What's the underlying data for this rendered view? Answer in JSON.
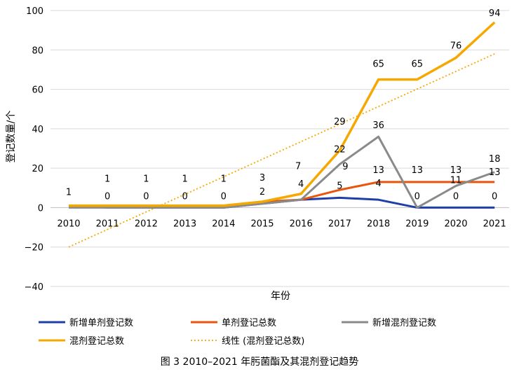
{
  "chart_data": {
    "type": "line",
    "title": "",
    "xlabel": "年份",
    "ylabel": "登记数量/个",
    "ylim": [
      -40,
      100
    ],
    "yticks": [
      100,
      80,
      60,
      40,
      20,
      0,
      -20,
      -40
    ],
    "ytick_labels": [
      "100",
      "80",
      "60",
      "40",
      "20",
      "0",
      "−20",
      "−40"
    ],
    "categories": [
      "2010",
      "2011",
      "2012",
      "2013",
      "2014",
      "2015",
      "2016",
      "2017",
      "2018",
      "2019",
      "2020",
      "2021"
    ],
    "grid": true,
    "legend_position": "bottom",
    "series": [
      {
        "name": "新增单剂登记数",
        "color": "#1f3fa8",
        "style": "solid",
        "values": [
          1,
          0,
          0,
          0,
          0,
          2,
          4,
          5,
          4,
          0,
          0,
          0
        ]
      },
      {
        "name": "单剂登记总数",
        "color": "#e8560e",
        "style": "solid",
        "values": [
          1,
          1,
          1,
          1,
          1,
          3,
          4,
          9,
          13,
          13,
          13,
          13
        ]
      },
      {
        "name": "新增混剂登记数",
        "color": "#8a8a8a",
        "style": "solid",
        "values": [
          0,
          0,
          0,
          0,
          0,
          2,
          4,
          22,
          36,
          0,
          11,
          18
        ]
      },
      {
        "name": "混剂登记总数",
        "color": "#f5a800",
        "style": "solid",
        "values": [
          1,
          1,
          1,
          1,
          1,
          3,
          7,
          29,
          65,
          65,
          76,
          94
        ]
      },
      {
        "name": "线性 (混剂登记总数)",
        "color": "#f5a800",
        "style": "dotted",
        "trend_endpoints": [
          -20,
          78
        ]
      }
    ],
    "data_labels": [
      {
        "category": "2010",
        "value": 1,
        "text": "1"
      },
      {
        "category": "2011",
        "value": 1,
        "text": "1"
      },
      {
        "category": "2011",
        "value": 0,
        "text": "0"
      },
      {
        "category": "2012",
        "value": 1,
        "text": "1"
      },
      {
        "category": "2012",
        "value": 0,
        "text": "0"
      },
      {
        "category": "2013",
        "value": 1,
        "text": "1"
      },
      {
        "category": "2013",
        "value": 0,
        "text": "0"
      },
      {
        "category": "2014",
        "value": 1,
        "text": "1"
      },
      {
        "category": "2014",
        "value": 0,
        "text": "0"
      },
      {
        "category": "2015",
        "value": 3,
        "text": "3"
      },
      {
        "category": "2015",
        "value": 2,
        "text": "2"
      },
      {
        "category": "2016",
        "value": 7,
        "text": "7"
      },
      {
        "category": "2016",
        "value": 4,
        "text": "4"
      },
      {
        "category": "2017",
        "value": 29,
        "text": "29"
      },
      {
        "category": "2017",
        "value": 22,
        "text": "22"
      },
      {
        "category": "2017",
        "value": 9,
        "text": "9"
      },
      {
        "category": "2017",
        "value": 5,
        "text": "5"
      },
      {
        "category": "2018",
        "value": 65,
        "text": "65"
      },
      {
        "category": "2018",
        "value": 36,
        "text": "36"
      },
      {
        "category": "2018",
        "value": 13,
        "text": "13"
      },
      {
        "category": "2018",
        "value": 4,
        "text": "4"
      },
      {
        "category": "2019",
        "value": 65,
        "text": "65"
      },
      {
        "category": "2019",
        "value": 13,
        "text": "13"
      },
      {
        "category": "2019",
        "value": 0,
        "text": "0"
      },
      {
        "category": "2020",
        "value": 76,
        "text": "76"
      },
      {
        "category": "2020",
        "value": 13,
        "text": "13"
      },
      {
        "category": "2020",
        "value": 11,
        "text": "11"
      },
      {
        "category": "2020",
        "value": 0,
        "text": "0"
      },
      {
        "category": "2021",
        "value": 94,
        "text": "94"
      },
      {
        "category": "2021",
        "value": 18,
        "text": "18"
      },
      {
        "category": "2021",
        "value": 13,
        "text": "13"
      },
      {
        "category": "2021",
        "value": 0,
        "text": "0"
      }
    ]
  },
  "caption": "图 3  2010–2021 年肟菌酯及其混剂登记趋势"
}
